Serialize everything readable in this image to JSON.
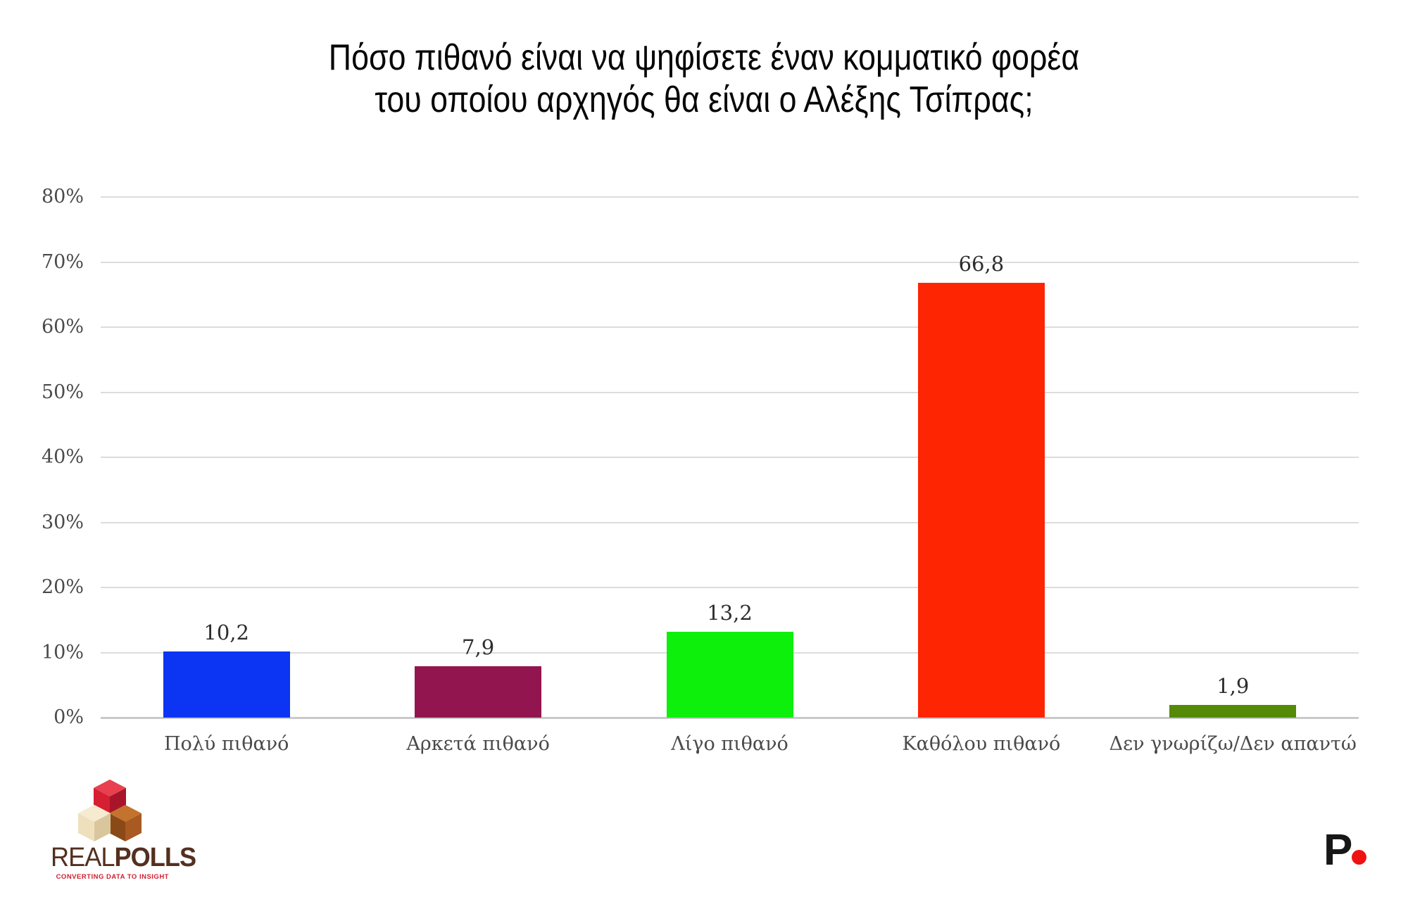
{
  "title": {
    "line1": "Πόσο πιθανό είναι να ψηφίσετε έναν κομματικό φορέα",
    "line2": "του οποίου αρχηγός θα είναι ο Αλέξης Τσίπρας;"
  },
  "chart_data": {
    "type": "bar",
    "title": "Πόσο πιθανό είναι να ψηφίσετε έναν κομματικό φορέα του οποίου αρχηγός θα είναι ο Αλέξης Τσίπρας;",
    "categories": [
      "Πολύ πιθανό",
      "Αρκετά πιθανό",
      "Λίγο πιθανό",
      "Καθόλου πιθανό",
      "Δεν γνωρίζω/Δεν απαντώ"
    ],
    "values": [
      10.2,
      7.9,
      13.2,
      66.8,
      1.9
    ],
    "value_labels": [
      "10,2",
      "7,9",
      "13,2",
      "66,8",
      "1,9"
    ],
    "bar_colors": [
      "#0b35f3",
      "#921550",
      "#0cf00c",
      "#fe2502",
      "#548a06"
    ],
    "xlabel": "",
    "ylabel": "",
    "ylim": [
      0,
      80
    ],
    "yticks": [
      0,
      10,
      20,
      30,
      40,
      50,
      60,
      70,
      80
    ],
    "ytick_labels": [
      "0%",
      "10%",
      "20%",
      "30%",
      "40%",
      "50%",
      "60%",
      "70%",
      "80%"
    ],
    "grid": true,
    "gridline_color": "#dcdcdc",
    "legend_position": "none"
  },
  "branding": {
    "realpolls": {
      "name_regular": "REAL",
      "name_bold": "POLLS",
      "tagline": "CONVERTING DATA TO INSIGHT"
    },
    "publisher": {
      "letter": "P"
    }
  }
}
